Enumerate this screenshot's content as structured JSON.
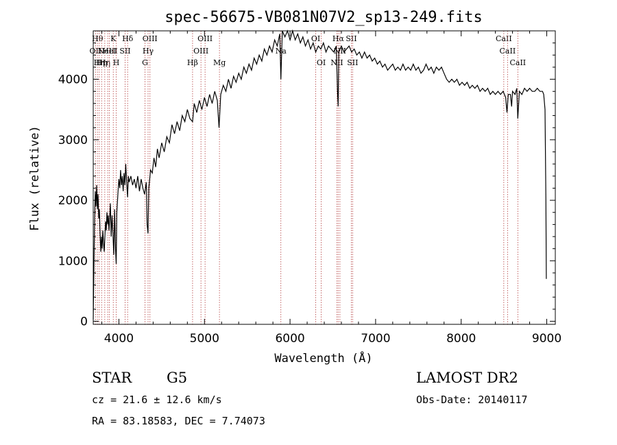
{
  "chart_data": {
    "type": "line",
    "title": "spec-56675-VB081N07V2_sp13-249.fits",
    "xlabel": "Wavelength (Å)",
    "ylabel": "Flux (relative)",
    "xlim": [
      3700,
      9100
    ],
    "ylim": [
      -50,
      4800
    ],
    "xticks": [
      4000,
      5000,
      6000,
      7000,
      8000,
      9000
    ],
    "yticks": [
      0,
      1000,
      2000,
      3000,
      4000
    ],
    "grid": false,
    "series": [
      {
        "points": [
          [
            3700,
            30
          ],
          [
            3708,
            900
          ],
          [
            3716,
            1700
          ],
          [
            3724,
            2150
          ],
          [
            3732,
            1900
          ],
          [
            3740,
            2250
          ],
          [
            3748,
            1850
          ],
          [
            3756,
            2100
          ],
          [
            3764,
            1700
          ],
          [
            3772,
            1850
          ],
          [
            3780,
            1450
          ],
          [
            3788,
            1150
          ],
          [
            3796,
            1400
          ],
          [
            3804,
            1200
          ],
          [
            3812,
            1500
          ],
          [
            3820,
            1300
          ],
          [
            3828,
            1150
          ],
          [
            3836,
            1400
          ],
          [
            3844,
            1650
          ],
          [
            3852,
            1500
          ],
          [
            3860,
            1800
          ],
          [
            3868,
            1600
          ],
          [
            3876,
            1750
          ],
          [
            3884,
            1500
          ],
          [
            3892,
            1700
          ],
          [
            3900,
            1950
          ],
          [
            3910,
            1400
          ],
          [
            3920,
            1750
          ],
          [
            3930,
            1450
          ],
          [
            3940,
            1100
          ],
          [
            3950,
            1850
          ],
          [
            3960,
            1200
          ],
          [
            3968,
            950
          ],
          [
            3976,
            1800
          ],
          [
            3990,
            2150
          ],
          [
            4000,
            2350
          ],
          [
            4010,
            2200
          ],
          [
            4020,
            2500
          ],
          [
            4030,
            2250
          ],
          [
            4040,
            2400
          ],
          [
            4050,
            2150
          ],
          [
            4060,
            2450
          ],
          [
            4070,
            2250
          ],
          [
            4080,
            2600
          ],
          [
            4090,
            2300
          ],
          [
            4101,
            2050
          ],
          [
            4110,
            2400
          ],
          [
            4120,
            2300
          ],
          [
            4140,
            2400
          ],
          [
            4160,
            2250
          ],
          [
            4180,
            2350
          ],
          [
            4200,
            2200
          ],
          [
            4220,
            2400
          ],
          [
            4240,
            2150
          ],
          [
            4260,
            2350
          ],
          [
            4280,
            2200
          ],
          [
            4300,
            2100
          ],
          [
            4320,
            2300
          ],
          [
            4330,
            1600
          ],
          [
            4340,
            1450
          ],
          [
            4350,
            2200
          ],
          [
            4370,
            2500
          ],
          [
            4390,
            2450
          ],
          [
            4410,
            2700
          ],
          [
            4430,
            2550
          ],
          [
            4450,
            2850
          ],
          [
            4470,
            2700
          ],
          [
            4500,
            2950
          ],
          [
            4530,
            2800
          ],
          [
            4560,
            3050
          ],
          [
            4590,
            2950
          ],
          [
            4620,
            3250
          ],
          [
            4650,
            3100
          ],
          [
            4680,
            3300
          ],
          [
            4710,
            3150
          ],
          [
            4740,
            3400
          ],
          [
            4770,
            3300
          ],
          [
            4800,
            3500
          ],
          [
            4830,
            3350
          ],
          [
            4861,
            3300
          ],
          [
            4880,
            3600
          ],
          [
            4910,
            3450
          ],
          [
            4940,
            3650
          ],
          [
            4970,
            3500
          ],
          [
            5000,
            3700
          ],
          [
            5030,
            3550
          ],
          [
            5060,
            3750
          ],
          [
            5090,
            3600
          ],
          [
            5120,
            3800
          ],
          [
            5150,
            3650
          ],
          [
            5170,
            3200
          ],
          [
            5190,
            3750
          ],
          [
            5220,
            3900
          ],
          [
            5250,
            3800
          ],
          [
            5280,
            4000
          ],
          [
            5310,
            3850
          ],
          [
            5340,
            4050
          ],
          [
            5370,
            3950
          ],
          [
            5400,
            4100
          ],
          [
            5430,
            4000
          ],
          [
            5460,
            4200
          ],
          [
            5490,
            4100
          ],
          [
            5520,
            4250
          ],
          [
            5550,
            4150
          ],
          [
            5580,
            4350
          ],
          [
            5610,
            4250
          ],
          [
            5640,
            4400
          ],
          [
            5670,
            4300
          ],
          [
            5700,
            4500
          ],
          [
            5730,
            4400
          ],
          [
            5760,
            4550
          ],
          [
            5790,
            4450
          ],
          [
            5820,
            4650
          ],
          [
            5850,
            4550
          ],
          [
            5880,
            4750
          ],
          [
            5893,
            4000
          ],
          [
            5910,
            4800
          ],
          [
            5940,
            4700
          ],
          [
            5970,
            4800
          ],
          [
            6000,
            4650
          ],
          [
            6030,
            4800
          ],
          [
            6060,
            4650
          ],
          [
            6090,
            4750
          ],
          [
            6120,
            4600
          ],
          [
            6150,
            4700
          ],
          [
            6180,
            4550
          ],
          [
            6210,
            4650
          ],
          [
            6240,
            4500
          ],
          [
            6270,
            4600
          ],
          [
            6300,
            4450
          ],
          [
            6330,
            4550
          ],
          [
            6360,
            4500
          ],
          [
            6390,
            4600
          ],
          [
            6420,
            4450
          ],
          [
            6450,
            4550
          ],
          [
            6480,
            4500
          ],
          [
            6510,
            4450
          ],
          [
            6540,
            4550
          ],
          [
            6555,
            3800
          ],
          [
            6563,
            3550
          ],
          [
            6570,
            4450
          ],
          [
            6600,
            4550
          ],
          [
            6630,
            4450
          ],
          [
            6660,
            4500
          ],
          [
            6690,
            4550
          ],
          [
            6720,
            4450
          ],
          [
            6750,
            4500
          ],
          [
            6780,
            4400
          ],
          [
            6810,
            4450
          ],
          [
            6840,
            4350
          ],
          [
            6870,
            4450
          ],
          [
            6900,
            4350
          ],
          [
            6930,
            4400
          ],
          [
            6960,
            4300
          ],
          [
            6990,
            4350
          ],
          [
            7020,
            4250
          ],
          [
            7050,
            4300
          ],
          [
            7080,
            4200
          ],
          [
            7110,
            4250
          ],
          [
            7140,
            4150
          ],
          [
            7170,
            4200
          ],
          [
            7200,
            4250
          ],
          [
            7230,
            4150
          ],
          [
            7260,
            4200
          ],
          [
            7290,
            4150
          ],
          [
            7320,
            4250
          ],
          [
            7350,
            4150
          ],
          [
            7380,
            4200
          ],
          [
            7410,
            4150
          ],
          [
            7440,
            4250
          ],
          [
            7470,
            4150
          ],
          [
            7500,
            4200
          ],
          [
            7530,
            4100
          ],
          [
            7560,
            4150
          ],
          [
            7590,
            4250
          ],
          [
            7620,
            4150
          ],
          [
            7650,
            4200
          ],
          [
            7680,
            4100
          ],
          [
            7710,
            4200
          ],
          [
            7740,
            4150
          ],
          [
            7770,
            4200
          ],
          [
            7800,
            4100
          ],
          [
            7830,
            4000
          ],
          [
            7860,
            3950
          ],
          [
            7890,
            4000
          ],
          [
            7920,
            3950
          ],
          [
            7950,
            4000
          ],
          [
            7980,
            3900
          ],
          [
            8010,
            3950
          ],
          [
            8040,
            3900
          ],
          [
            8070,
            3950
          ],
          [
            8100,
            3850
          ],
          [
            8130,
            3900
          ],
          [
            8160,
            3850
          ],
          [
            8190,
            3900
          ],
          [
            8220,
            3800
          ],
          [
            8250,
            3850
          ],
          [
            8280,
            3800
          ],
          [
            8310,
            3850
          ],
          [
            8340,
            3750
          ],
          [
            8370,
            3800
          ],
          [
            8400,
            3750
          ],
          [
            8430,
            3800
          ],
          [
            8460,
            3750
          ],
          [
            8490,
            3800
          ],
          [
            8520,
            3700
          ],
          [
            8535,
            3450
          ],
          [
            8550,
            3750
          ],
          [
            8575,
            3750
          ],
          [
            8590,
            3550
          ],
          [
            8600,
            3800
          ],
          [
            8630,
            3750
          ],
          [
            8650,
            3850
          ],
          [
            8662,
            3350
          ],
          [
            8680,
            3800
          ],
          [
            8710,
            3750
          ],
          [
            8740,
            3850
          ],
          [
            8770,
            3800
          ],
          [
            8800,
            3850
          ],
          [
            8830,
            3800
          ],
          [
            8860,
            3800
          ],
          [
            8890,
            3850
          ],
          [
            8920,
            3800
          ],
          [
            8950,
            3800
          ],
          [
            8965,
            3750
          ],
          [
            8980,
            3500
          ],
          [
            8990,
            2000
          ],
          [
            8995,
            700
          ]
        ]
      }
    ],
    "lines": [
      {
        "x": 3727,
        "rows": [
          [
            "OII",
            1
          ]
        ]
      },
      {
        "x": 3750,
        "rows": [
          [
            "Hθ",
            0
          ]
        ]
      },
      {
        "x": 3771,
        "rows": [
          [
            "Hη",
            2
          ]
        ]
      },
      {
        "x": 3798,
        "rows": [
          [
            "Hη",
            2
          ]
        ]
      },
      {
        "x": 3835,
        "rows": [
          [
            "Hη",
            2
          ]
        ]
      },
      {
        "x": 3869,
        "rows": [
          [
            "NeIII",
            1
          ]
        ]
      },
      {
        "x": 3889,
        "rows": [
          [
            "HeI",
            1
          ]
        ]
      },
      {
        "x": 3934,
        "rows": [
          [
            "K",
            0
          ]
        ]
      },
      {
        "x": 3969,
        "rows": [
          [
            "H",
            2
          ]
        ]
      },
      {
        "x": 4072,
        "rows": [
          [
            "SII",
            1
          ]
        ]
      },
      {
        "x": 4102,
        "rows": [
          [
            "Hδ",
            0
          ]
        ]
      },
      {
        "x": 4305,
        "rows": [
          [
            "G",
            2
          ]
        ]
      },
      {
        "x": 4341,
        "rows": [
          [
            "Hγ",
            1
          ]
        ]
      },
      {
        "x": 4363,
        "rows": [
          [
            "OIII",
            0
          ]
        ]
      },
      {
        "x": 4861,
        "rows": [
          [
            "Hβ",
            2
          ]
        ]
      },
      {
        "x": 4959,
        "rows": [
          [
            "OIII",
            1
          ]
        ]
      },
      {
        "x": 5007,
        "rows": [
          [
            "OIII",
            0
          ]
        ]
      },
      {
        "x": 5175,
        "rows": [
          [
            "Mg",
            2
          ]
        ]
      },
      {
        "x": 5893,
        "rows": [
          [
            "Na",
            1
          ]
        ]
      },
      {
        "x": 6300,
        "rows": [
          [
            "OI",
            0
          ]
        ]
      },
      {
        "x": 6364,
        "rows": [
          [
            "OI",
            2
          ]
        ]
      },
      {
        "x": 6548,
        "rows": [
          [
            "NII",
            2
          ]
        ]
      },
      {
        "x": 6563,
        "rows": [
          [
            "Hα",
            0
          ]
        ]
      },
      {
        "x": 6583,
        "rows": [
          [
            "NII",
            1
          ]
        ]
      },
      {
        "x": 6716,
        "rows": [
          [
            "SII",
            0
          ]
        ]
      },
      {
        "x": 6731,
        "rows": [
          [
            "SII",
            2
          ]
        ]
      },
      {
        "x": 8498,
        "rows": [
          [
            "CaII",
            0
          ]
        ]
      },
      {
        "x": 8542,
        "rows": [
          [
            "CaII",
            1
          ]
        ]
      },
      {
        "x": 8662,
        "rows": [
          [
            "CaII",
            2
          ]
        ]
      }
    ]
  },
  "info": {
    "class": "STAR",
    "subclass": "G5",
    "survey": "LAMOST DR2",
    "redshift": "cz = 21.6 ± 12.6 km/s",
    "obsdate": "Obs-Date: 20140117",
    "coords": "RA =  83.18583, DEC =   7.74073"
  }
}
